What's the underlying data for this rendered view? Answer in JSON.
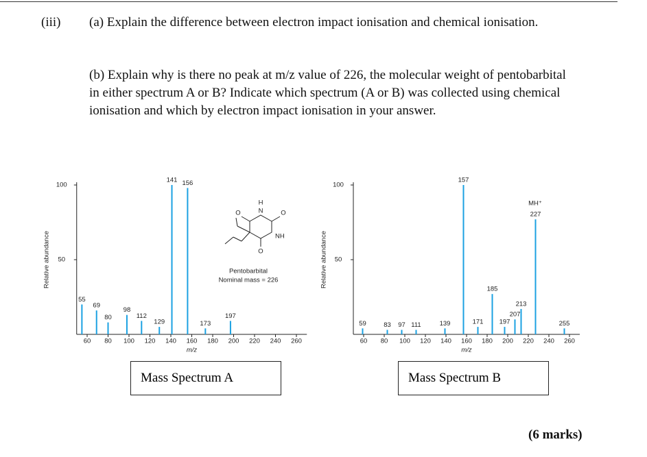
{
  "header": {
    "part": "(iii)"
  },
  "questions": [
    {
      "text": "(a) Explain the difference between electron impact ionisation and chemical ionisation."
    },
    {
      "text": "(b) Explain why is there no peak at m/z value of 226, the molecular weight of pentobarbital in either spectrum A or B? Indicate which spectrum (A or B) was collected using chemical ionisation and which by electron impact ionisation in your answer."
    }
  ],
  "chart_data": [
    {
      "type": "bar",
      "caption": "Mass Spectrum A",
      "xlabel": "m/z",
      "ylabel": "Relative abundance",
      "x": [
        55,
        69,
        80,
        98,
        112,
        129,
        141,
        156,
        173,
        197
      ],
      "values": [
        20,
        16,
        8,
        13,
        9,
        5,
        100,
        98,
        4,
        9
      ],
      "color": "#1ba1e2",
      "xlim": [
        50,
        270
      ],
      "xticks": [
        60,
        80,
        100,
        120,
        140,
        160,
        180,
        200,
        220,
        240,
        260
      ],
      "ylim": [
        0,
        100
      ],
      "yticks": [
        50,
        100
      ],
      "annotations": [
        "Pentobarbital",
        "Nominal mass = 226"
      ],
      "structure_labels": [
        "H",
        "N",
        "O",
        "O",
        "NH",
        "O"
      ]
    },
    {
      "type": "bar",
      "caption": "Mass Spectrum B",
      "xlabel": "m/z",
      "ylabel": "Relative abundance",
      "x": [
        59,
        83,
        97,
        111,
        139,
        157,
        171,
        185,
        197,
        207,
        213,
        227,
        255
      ],
      "values": [
        4,
        3,
        3,
        3,
        4,
        100,
        5,
        27,
        5,
        10,
        17,
        77,
        4
      ],
      "color": "#1ba1e2",
      "xlim": [
        50,
        270
      ],
      "xticks": [
        60,
        80,
        100,
        120,
        140,
        160,
        180,
        200,
        220,
        240,
        260
      ],
      "ylim": [
        0,
        100
      ],
      "yticks": [
        50,
        100
      ],
      "annotations": [
        "MH⁺"
      ]
    }
  ],
  "marks": "(6 marks)"
}
